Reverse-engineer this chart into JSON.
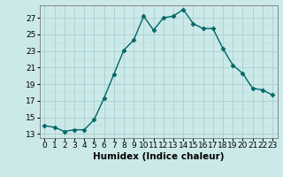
{
  "x": [
    0,
    1,
    2,
    3,
    4,
    5,
    6,
    7,
    8,
    9,
    10,
    11,
    12,
    13,
    14,
    15,
    16,
    17,
    18,
    19,
    20,
    21,
    22,
    23
  ],
  "y": [
    14.0,
    13.8,
    13.3,
    13.5,
    13.5,
    14.7,
    17.3,
    20.2,
    23.1,
    24.3,
    27.2,
    25.5,
    27.0,
    27.2,
    28.0,
    26.3,
    25.7,
    25.7,
    23.3,
    21.3,
    20.3,
    18.5,
    18.3,
    17.7
  ],
  "line_color": "#006666",
  "marker": "D",
  "marker_size": 2.5,
  "bg_color": "#cce9e9",
  "grid_color_major": "#aacfcf",
  "grid_color_minor": "#bbdddd",
  "xlabel": "Humidex (Indice chaleur)",
  "ylim": [
    12.5,
    28.5
  ],
  "xlim": [
    -0.5,
    23.5
  ],
  "yticks": [
    13,
    15,
    17,
    19,
    21,
    23,
    25,
    27
  ],
  "xtick_labels": [
    "0",
    "1",
    "2",
    "3",
    "4",
    "5",
    "6",
    "7",
    "8",
    "9",
    "10",
    "11",
    "12",
    "13",
    "14",
    "15",
    "16",
    "17",
    "18",
    "19",
    "20",
    "21",
    "22",
    "23"
  ],
  "xlabel_fontsize": 7.5,
  "tick_fontsize": 6.5,
  "line_width": 1.0
}
